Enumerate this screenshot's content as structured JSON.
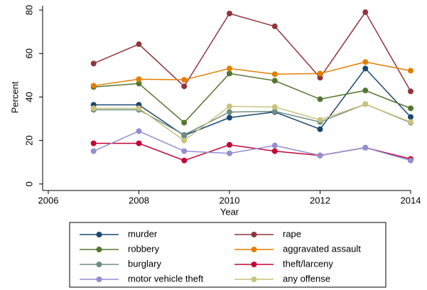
{
  "chart_data": {
    "type": "line",
    "x_label": "Year",
    "y_label": "Percent",
    "x": [
      2007,
      2008,
      2009,
      2010,
      2011,
      2012,
      2013,
      2014
    ],
    "xlim": [
      2005.875,
      2014
    ],
    "xticks": [
      2006,
      2008,
      2010,
      2012,
      2014
    ],
    "ylim": [
      -3,
      82
    ],
    "yticks": [
      0,
      20,
      40,
      60,
      80
    ],
    "series": [
      {
        "name": "murder",
        "color": "#1a476f",
        "values": [
          36.4,
          36.4,
          22.3,
          30.5,
          33.1,
          25.2,
          53.1,
          30.8
        ]
      },
      {
        "name": "rape",
        "color": "#90353b",
        "values": [
          55.4,
          64.3,
          44.9,
          78.4,
          72.5,
          48.9,
          79.0,
          42.6
        ]
      },
      {
        "name": "robbery",
        "color": "#55752f",
        "values": [
          44.6,
          46.2,
          28.2,
          50.8,
          47.5,
          39.0,
          43.0,
          34.8
        ]
      },
      {
        "name": "aggravated assault",
        "color": "#e37e00",
        "values": [
          45.2,
          48.2,
          47.9,
          53.1,
          50.5,
          50.8,
          56.1,
          52.1
        ]
      },
      {
        "name": "burglary",
        "color": "#6e8e84",
        "values": [
          34.1,
          34.1,
          22.6,
          33.1,
          33.4,
          28.5,
          36.7,
          28.2
        ]
      },
      {
        "name": "theft/larceny",
        "color": "#c10534",
        "values": [
          18.7,
          18.7,
          10.8,
          18.0,
          15.1,
          13.1,
          16.7,
          11.5
        ]
      },
      {
        "name": "motor vehicle theft",
        "color": "#938dd2",
        "values": [
          15.1,
          24.3,
          15.1,
          14.1,
          17.7,
          13.1,
          16.7,
          10.8
        ]
      },
      {
        "name": "any offense",
        "color": "#cac27e",
        "values": [
          34.8,
          34.8,
          20.0,
          35.7,
          35.4,
          29.5,
          36.7,
          28.5
        ]
      }
    ]
  }
}
